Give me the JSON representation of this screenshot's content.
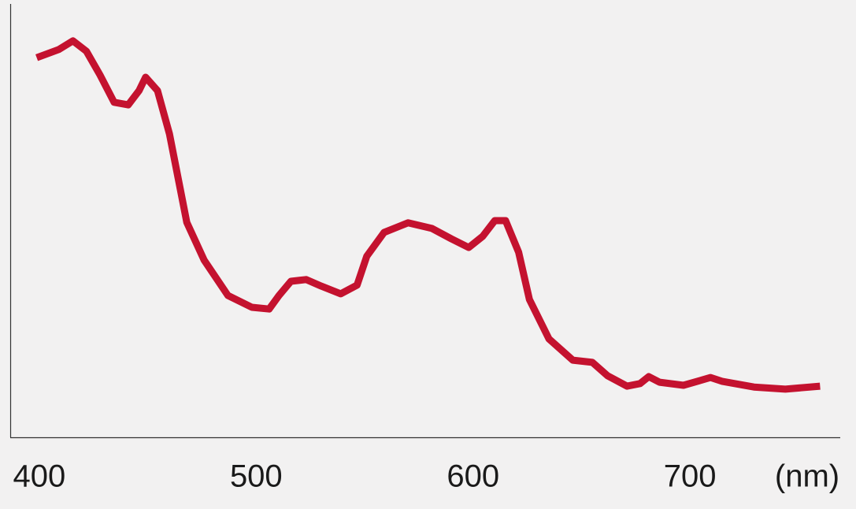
{
  "chart_data": {
    "type": "line",
    "x_label": "(nm)",
    "xlim": [
      386.6,
      769.3
    ],
    "ylim": [
      0,
      100
    ],
    "xticks": [
      400,
      500,
      600,
      700
    ],
    "series": [
      {
        "color": "#c4122f",
        "x": [
          398.8,
          409,
          415.5,
          421.7,
          428,
          434.5,
          441,
          446,
          449,
          454.5,
          460,
          465,
          468,
          476,
          487,
          498,
          506,
          510.5,
          516,
          523,
          530,
          539,
          546.5,
          551,
          559,
          570,
          581,
          590,
          598,
          604.5,
          610,
          615,
          621,
          626,
          635,
          646,
          655,
          662,
          671,
          677,
          681,
          686,
          697,
          709.5,
          715,
          729.5,
          744,
          760
        ],
        "values": [
          87.6,
          89.5,
          91.5,
          89.1,
          83.6,
          77.3,
          76.7,
          80,
          83.1,
          80,
          70,
          57.3,
          49.6,
          40.9,
          32.7,
          30,
          29.6,
          32.7,
          36,
          36.4,
          34.9,
          33.1,
          35.1,
          41.8,
          47.3,
          49.5,
          48.2,
          45.8,
          43.8,
          46.4,
          50,
          50,
          42.7,
          31.8,
          22.7,
          17.8,
          17.3,
          14.2,
          11.8,
          12.4,
          14,
          12.7,
          12,
          13.8,
          12.9,
          11.6,
          11.1,
          11.8
        ]
      }
    ]
  }
}
